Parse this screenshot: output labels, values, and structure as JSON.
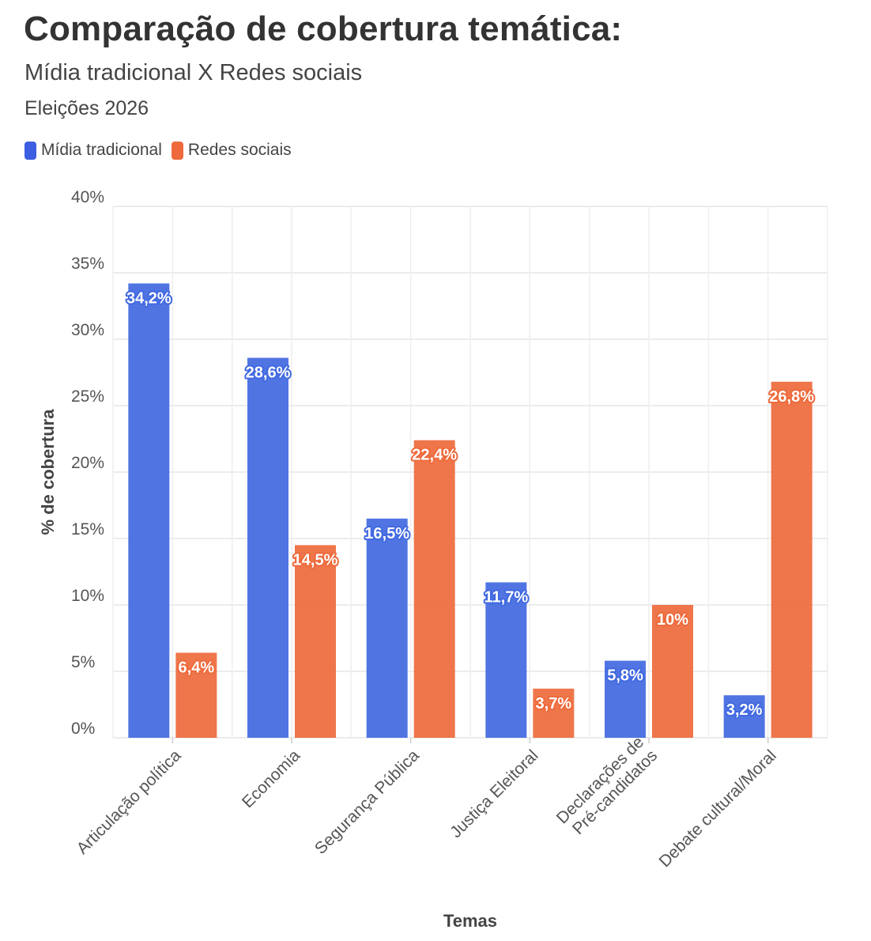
{
  "chart_data": {
    "type": "bar",
    "title": "Comparação de cobertura temática:",
    "subtitle": "Mídia tradicional X Redes sociais",
    "subtitle2": "Eleições 2026",
    "xlabel": "Temas",
    "ylabel": "% de cobertura",
    "ylim": [
      0,
      40
    ],
    "yticks": [
      0,
      5,
      10,
      15,
      20,
      25,
      30,
      35,
      40
    ],
    "ytick_labels": [
      "0%",
      "5%",
      "10%",
      "15%",
      "20%",
      "25%",
      "30%",
      "35%",
      "40%"
    ],
    "categories": [
      [
        "Articulação política"
      ],
      [
        "Economia"
      ],
      [
        "Segurança Pública"
      ],
      [
        "Justiça Eleitoral"
      ],
      [
        "Declarações de",
        "Pré-candidatos"
      ],
      [
        "Debate cultural/Moral"
      ]
    ],
    "series": [
      {
        "name": "Mídia tradicional",
        "color": "#4169E1",
        "values": [
          34.2,
          28.6,
          16.5,
          11.7,
          5.8,
          3.2
        ],
        "labels": [
          "34,2%",
          "28,6%",
          "16,5%",
          "11,7%",
          "5,8%",
          "3,2%"
        ]
      },
      {
        "name": "Redes sociais",
        "color": "#EE6A3C",
        "values": [
          6.4,
          14.5,
          22.4,
          3.7,
          10,
          26.8
        ],
        "labels": [
          "6,4%",
          "14,5%",
          "22,4%",
          "3,7%",
          "10%",
          "26,8%"
        ]
      }
    ],
    "legend_position": "top-left",
    "grid": true
  }
}
